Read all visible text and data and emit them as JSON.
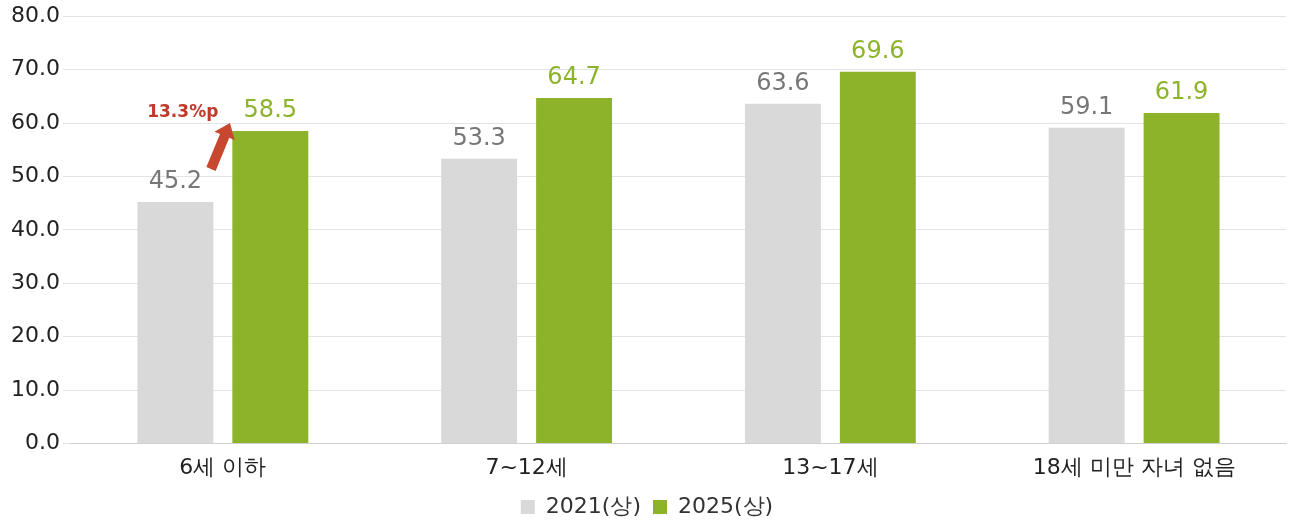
{
  "chart_data": {
    "type": "bar",
    "categories": [
      "6세 이하",
      "7~12세",
      "13~17세",
      "18세 미만 자녀 없음"
    ],
    "series": [
      {
        "name": "2021(상)",
        "color": "#d9d9d9",
        "values": [
          45.2,
          53.3,
          63.6,
          59.1
        ]
      },
      {
        "name": "2025(상)",
        "color": "#8db32a",
        "values": [
          58.5,
          64.7,
          69.6,
          61.9
        ]
      }
    ],
    "ylim": [
      0,
      80
    ],
    "yticks": [
      {
        "value": 0,
        "label": "0.0"
      },
      {
        "value": 10,
        "label": "10.0"
      },
      {
        "value": 20,
        "label": "20.0"
      },
      {
        "value": 30,
        "label": "30.0"
      },
      {
        "value": 40,
        "label": "40.0"
      },
      {
        "value": 50,
        "label": "50.0"
      },
      {
        "value": 60,
        "label": "60.0"
      },
      {
        "value": 70,
        "label": "70.0"
      },
      {
        "value": 80,
        "label": "80.0"
      }
    ],
    "grid": "y",
    "legend": "bottom",
    "data_labels": true,
    "annotations": [
      "13.3%p"
    ]
  }
}
